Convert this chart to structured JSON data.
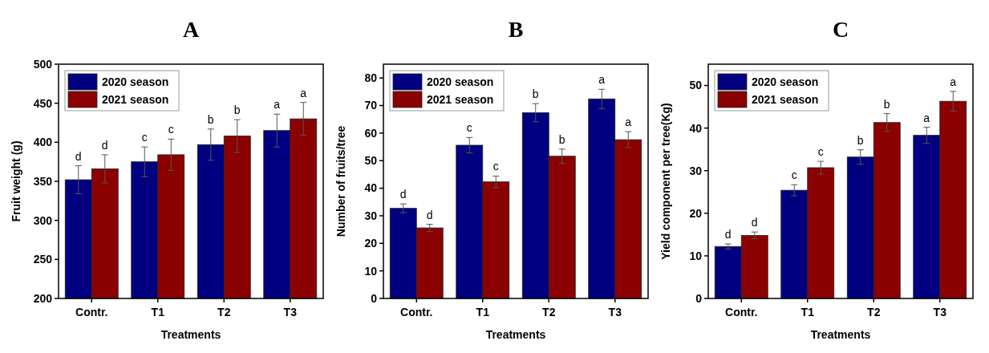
{
  "chart_data": [
    {
      "type": "bar",
      "title": "A",
      "xlabel": "Treatments",
      "ylabel": "Fruit weight (g)",
      "categories": [
        "Contr.",
        "T1",
        "T2",
        "T3"
      ],
      "ylim": [
        200,
        500
      ],
      "yticks": [
        200,
        250,
        300,
        350,
        400,
        450,
        500
      ],
      "legend": "top left",
      "series": [
        {
          "name": "2020 season",
          "color": "#000080",
          "values": [
            352,
            375,
            397,
            415
          ],
          "errors": [
            18,
            19,
            20,
            21
          ],
          "value_labels": [
            "d",
            "c",
            "b",
            "a"
          ]
        },
        {
          "name": "2021 season",
          "color": "#8b0000",
          "values": [
            366,
            384,
            408,
            430
          ],
          "errors": [
            18,
            20,
            21,
            21
          ],
          "value_labels": [
            "d",
            "c",
            "b",
            "a"
          ]
        }
      ]
    },
    {
      "type": "bar",
      "title": "B",
      "xlabel": "Treatments",
      "ylabel": "Number of fruits/tree",
      "categories": [
        "Contr.",
        "T1",
        "T2",
        "T3"
      ],
      "ylim": [
        0,
        85
      ],
      "yticks": [
        0,
        10,
        20,
        30,
        40,
        50,
        60,
        70,
        80
      ],
      "legend": "top left",
      "series": [
        {
          "name": "2020 season",
          "color": "#000080",
          "values": [
            32.7,
            55.6,
            67.4,
            72.4
          ],
          "errors": [
            1.6,
            2.8,
            3.3,
            3.5
          ],
          "value_labels": [
            "d",
            "c",
            "b",
            "a"
          ]
        },
        {
          "name": "2021 season",
          "color": "#8b0000",
          "values": [
            25.6,
            42.3,
            51.6,
            57.6
          ],
          "errors": [
            1.3,
            2.1,
            2.6,
            2.9
          ],
          "value_labels": [
            "d",
            "c",
            "b",
            "a"
          ]
        }
      ]
    },
    {
      "type": "bar",
      "title": "C",
      "xlabel": "Treatments",
      "ylabel": "Yield component per tree(Kg)",
      "categories": [
        "Contr.",
        "T1",
        "T2",
        "T3"
      ],
      "ylim": [
        0,
        55
      ],
      "yticks": [
        0,
        10,
        20,
        30,
        40,
        50
      ],
      "legend": "top left",
      "series": [
        {
          "name": "2020 season",
          "color": "#000080",
          "values": [
            12.2,
            25.4,
            33.2,
            38.3
          ],
          "errors": [
            0.6,
            1.3,
            1.7,
            1.9
          ],
          "value_labels": [
            "d",
            "c",
            "b",
            "a"
          ]
        },
        {
          "name": "2021 season",
          "color": "#8b0000",
          "values": [
            14.8,
            30.7,
            41.3,
            46.3
          ],
          "errors": [
            0.8,
            1.5,
            2.1,
            2.3
          ],
          "value_labels": [
            "d",
            "c",
            "b",
            "a"
          ]
        }
      ]
    }
  ]
}
